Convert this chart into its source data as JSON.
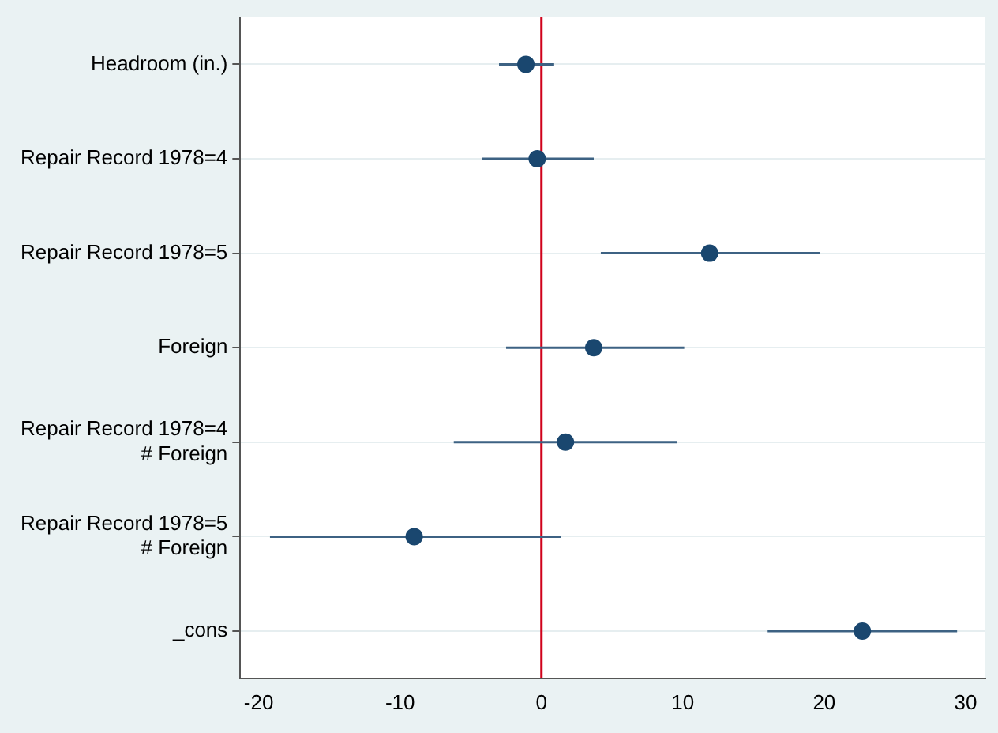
{
  "chart_data": {
    "type": "scatter",
    "orientation": "horizontal",
    "categories": [
      "Headroom (in.)",
      "Repair Record 1978=4",
      "Repair Record 1978=5",
      "Foreign",
      "Repair Record 1978=4\n# Foreign",
      "Repair Record 1978=5\n# Foreign",
      "_cons"
    ],
    "values": [
      -1.1,
      -0.3,
      11.9,
      3.7,
      1.7,
      -9.0,
      22.7
    ],
    "errors": [
      [
        -3.0,
        0.9
      ],
      [
        -4.2,
        3.7
      ],
      [
        4.2,
        19.7
      ],
      [
        -2.5,
        10.1
      ],
      [
        -6.2,
        9.6
      ],
      [
        -19.2,
        1.4
      ],
      [
        16.0,
        29.4
      ]
    ],
    "color": "#1a476f",
    "xlim": [
      -21.3,
      31.4
    ],
    "xticks": [
      -20,
      -10,
      0,
      10,
      20,
      30
    ],
    "ref_lines": [
      {
        "axis": "x",
        "value": 0,
        "color": "#d0021b"
      }
    ],
    "grid": "y",
    "marker": "circle",
    "legend": false
  }
}
